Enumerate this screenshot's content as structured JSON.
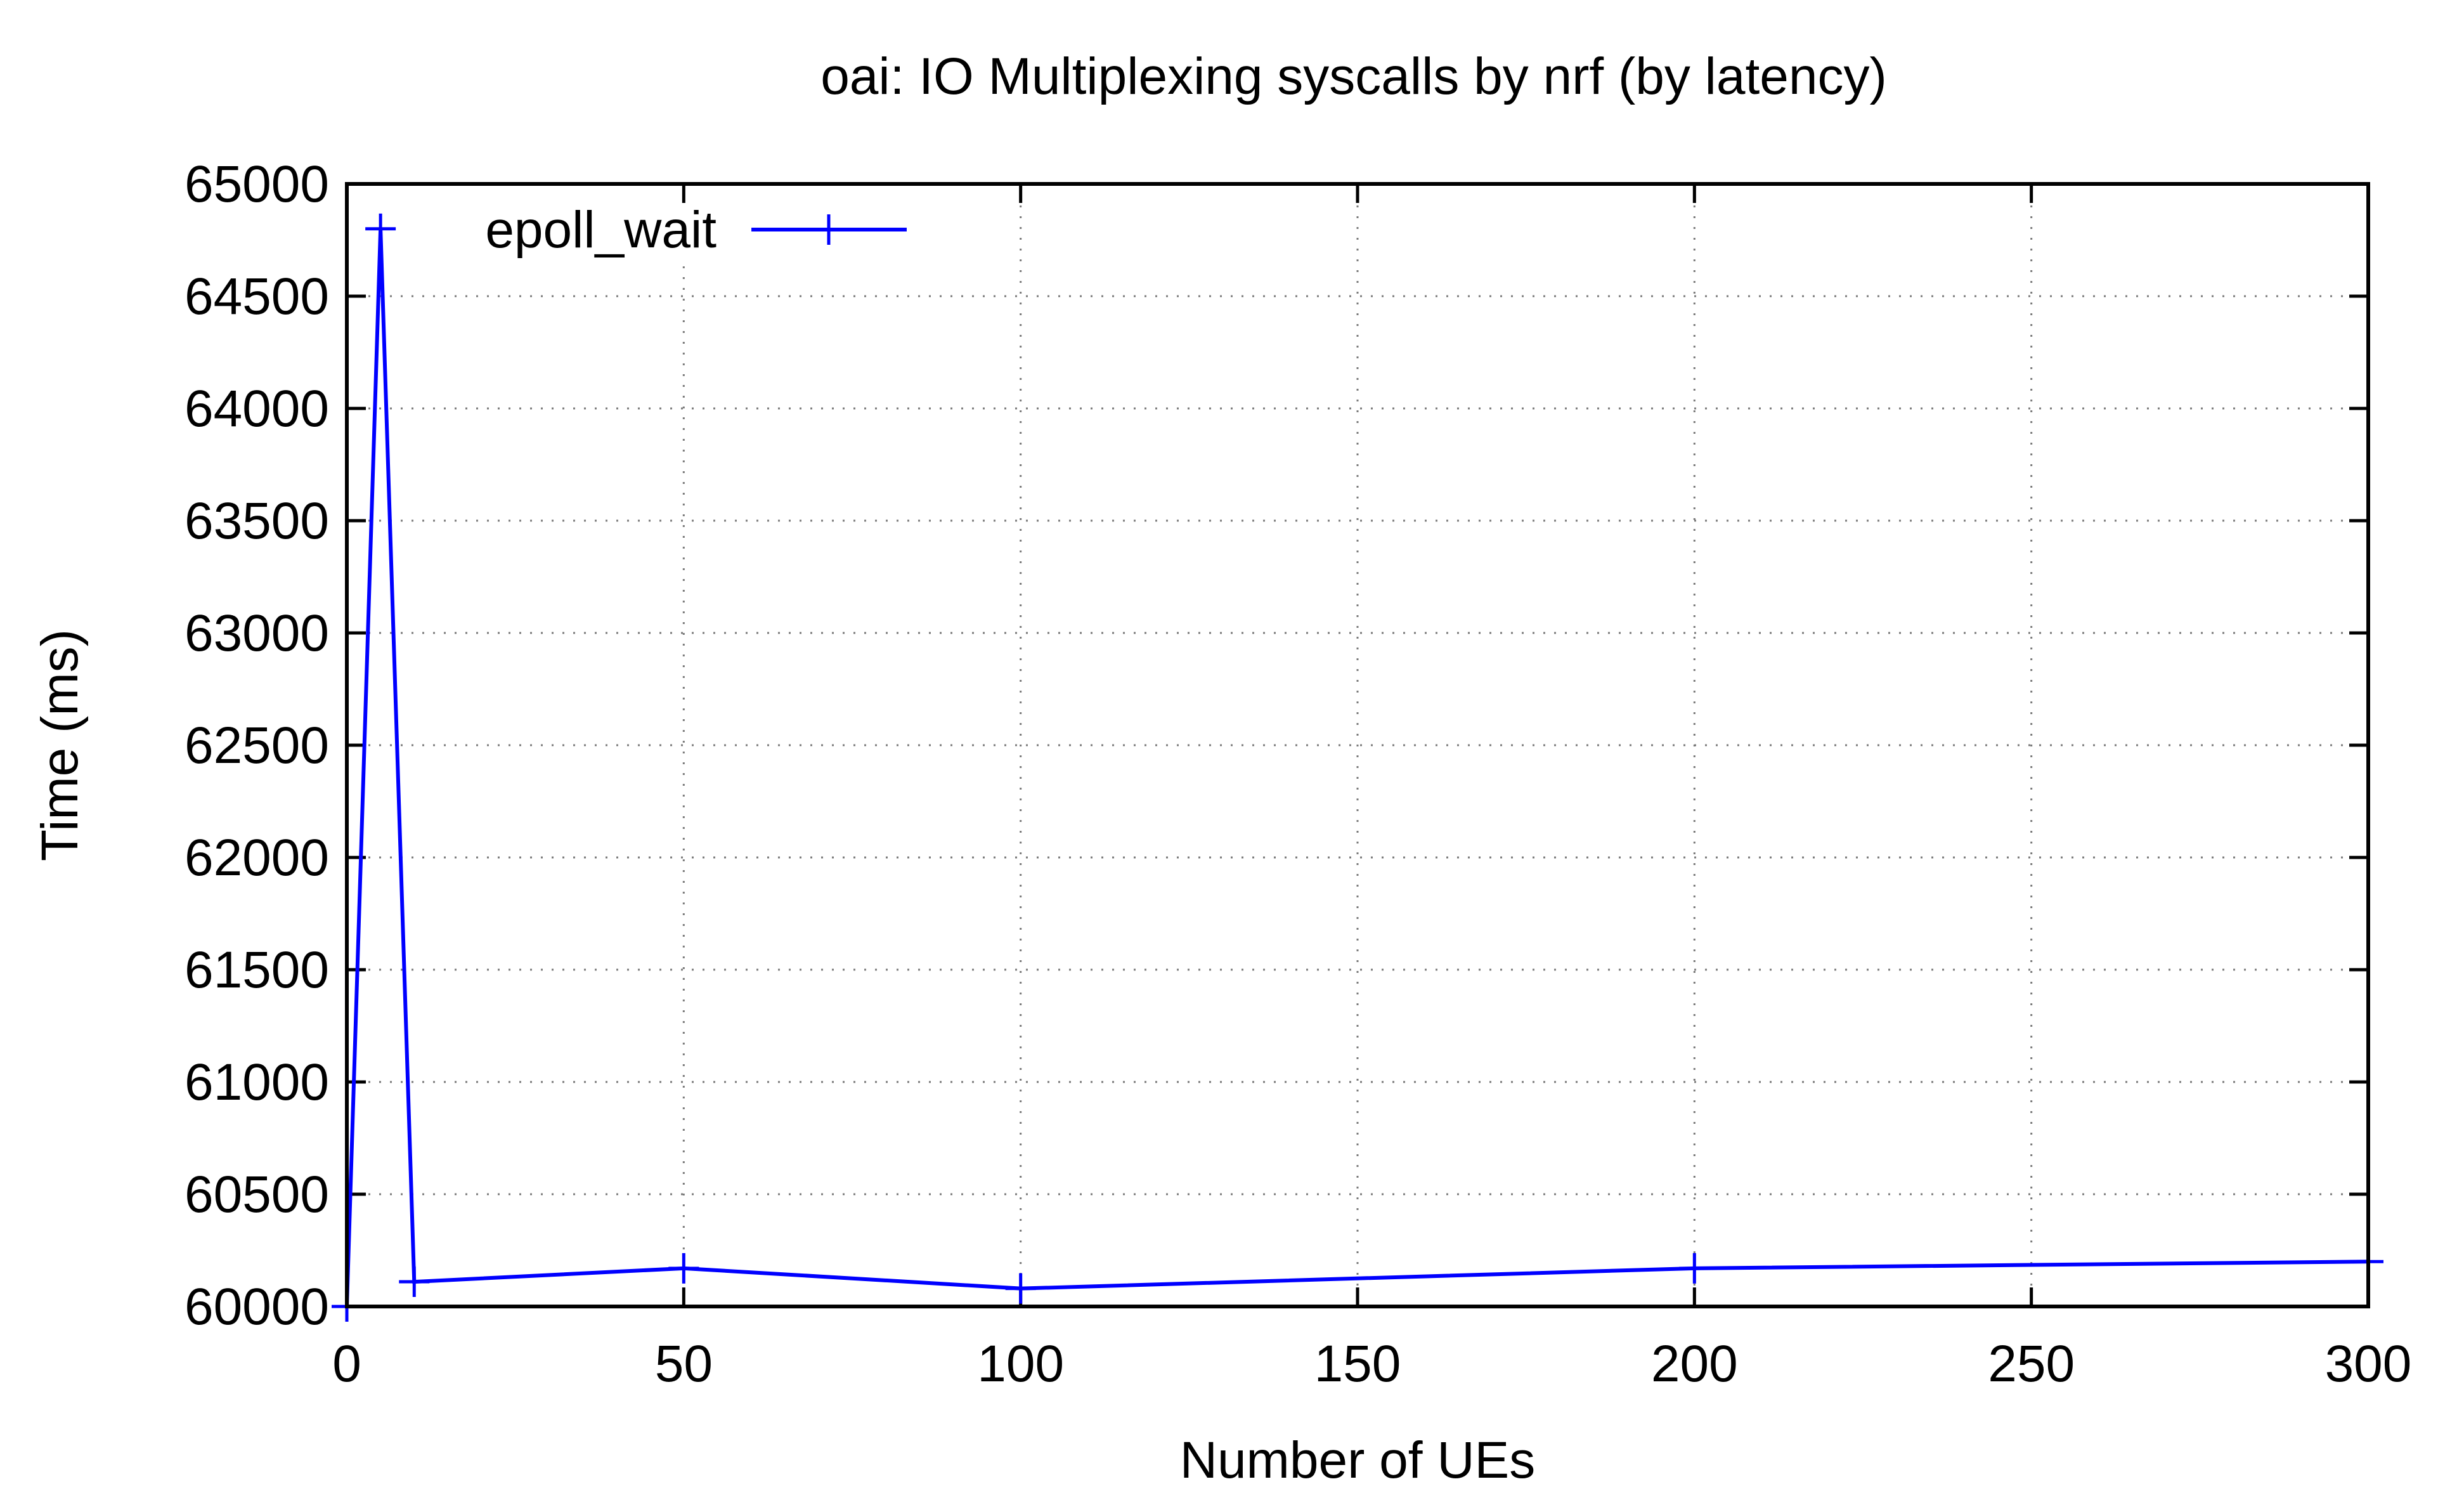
{
  "chart_data": {
    "type": "line",
    "title": "oai: IO Multiplexing syscalls by nrf (by latency)",
    "xlabel": "Number of UEs",
    "ylabel": "Time (ms)",
    "xlim": [
      0,
      300
    ],
    "ylim": [
      60000,
      65000
    ],
    "xticks": [
      0,
      50,
      100,
      150,
      200,
      250,
      300
    ],
    "yticks": [
      60000,
      60500,
      61000,
      61500,
      62000,
      62500,
      63000,
      63500,
      64000,
      64500,
      65000
    ],
    "grid": true,
    "legend_position": "top-left",
    "series": [
      {
        "name": "epoll_wait",
        "color": "#0000ff",
        "marker": "plus",
        "x": [
          0,
          5,
          10,
          50,
          100,
          200,
          300
        ],
        "y": [
          60000,
          64800,
          60110,
          60170,
          60080,
          60170,
          60200
        ]
      }
    ]
  }
}
